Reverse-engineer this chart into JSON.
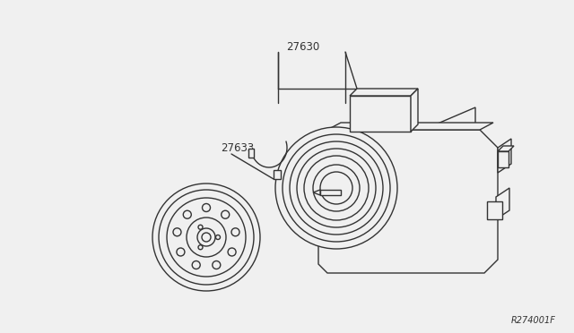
{
  "bg_color": "#f0f0f0",
  "line_color": "#333333",
  "fill_color": "#f0f0f0",
  "label_27630": "27630",
  "label_27633": "27633",
  "ref_code": "R274001F",
  "lw": 1.0,
  "lw_thick": 1.4
}
